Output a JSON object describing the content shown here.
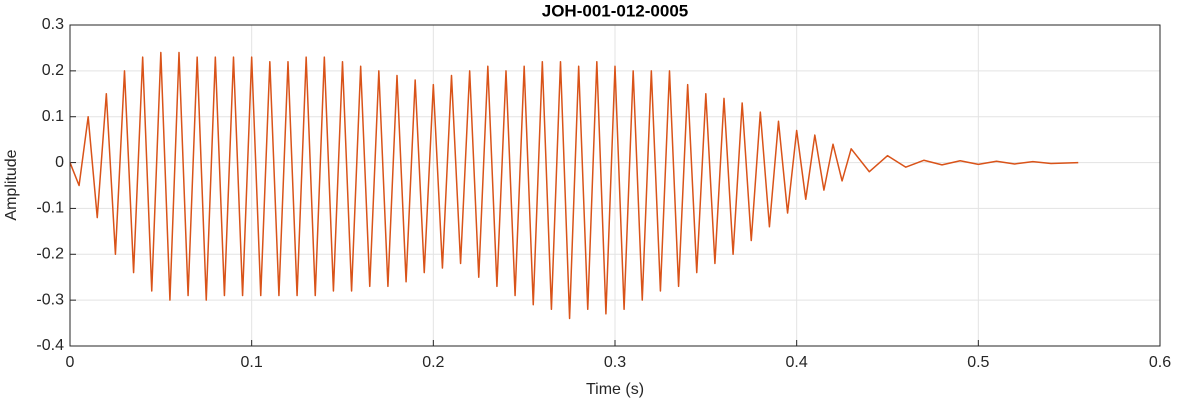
{
  "chart_data": {
    "type": "line",
    "title": "JOH-001-012-0005",
    "xlabel": "Time (s)",
    "ylabel": "Amplitude",
    "x": [
      0,
      0.005,
      0.01,
      0.015,
      0.02,
      0.025,
      0.03,
      0.035,
      0.04,
      0.045,
      0.05,
      0.055,
      0.06,
      0.065,
      0.07,
      0.075,
      0.08,
      0.085,
      0.09,
      0.095,
      0.1,
      0.105,
      0.11,
      0.115,
      0.12,
      0.125,
      0.13,
      0.135,
      0.14,
      0.145,
      0.15,
      0.155,
      0.16,
      0.165,
      0.17,
      0.175,
      0.18,
      0.185,
      0.19,
      0.195,
      0.2,
      0.205,
      0.21,
      0.215,
      0.22,
      0.225,
      0.23,
      0.235,
      0.24,
      0.245,
      0.25,
      0.255,
      0.26,
      0.265,
      0.27,
      0.275,
      0.28,
      0.285,
      0.29,
      0.295,
      0.3,
      0.305,
      0.31,
      0.315,
      0.32,
      0.325,
      0.33,
      0.335,
      0.34,
      0.345,
      0.35,
      0.355,
      0.36,
      0.365,
      0.37,
      0.375,
      0.38,
      0.385,
      0.39,
      0.395,
      0.4,
      0.405,
      0.41,
      0.415,
      0.42,
      0.425,
      0.43,
      0.44,
      0.45,
      0.46,
      0.47,
      0.48,
      0.49,
      0.5,
      0.51,
      0.52,
      0.53,
      0.54,
      0.555
    ],
    "series": [
      {
        "color": "#D95319",
        "values": [
          0,
          -0.05,
          0.1,
          -0.12,
          0.15,
          -0.2,
          0.2,
          -0.24,
          0.23,
          -0.28,
          0.24,
          -0.3,
          0.24,
          -0.29,
          0.23,
          -0.3,
          0.23,
          -0.29,
          0.23,
          -0.29,
          0.23,
          -0.29,
          0.22,
          -0.29,
          0.22,
          -0.29,
          0.23,
          -0.29,
          0.23,
          -0.28,
          0.22,
          -0.28,
          0.21,
          -0.27,
          0.2,
          -0.27,
          0.19,
          -0.26,
          0.18,
          -0.24,
          0.17,
          -0.23,
          0.19,
          -0.22,
          0.2,
          -0.25,
          0.21,
          -0.27,
          0.2,
          -0.29,
          0.21,
          -0.31,
          0.22,
          -0.32,
          0.22,
          -0.34,
          0.21,
          -0.32,
          0.22,
          -0.33,
          0.21,
          -0.32,
          0.2,
          -0.3,
          0.2,
          -0.28,
          0.2,
          -0.27,
          0.17,
          -0.24,
          0.15,
          -0.22,
          0.14,
          -0.2,
          0.13,
          -0.17,
          0.11,
          -0.14,
          0.09,
          -0.11,
          0.07,
          -0.08,
          0.06,
          -0.06,
          0.04,
          -0.04,
          0.03,
          -0.02,
          0.015,
          -0.01,
          0.005,
          -0.005,
          0.004,
          -0.004,
          0.003,
          -0.003,
          0.002,
          -0.002,
          0
        ]
      }
    ],
    "xlim": [
      0,
      0.6
    ],
    "xticks": [
      0,
      0.1,
      0.2,
      0.3,
      0.4,
      0.5,
      0.6
    ],
    "ylim": [
      -0.4,
      0.3
    ],
    "yticks": [
      -0.4,
      -0.3,
      -0.2,
      -0.1,
      0,
      0.1,
      0.2,
      0.3
    ],
    "grid": true
  }
}
